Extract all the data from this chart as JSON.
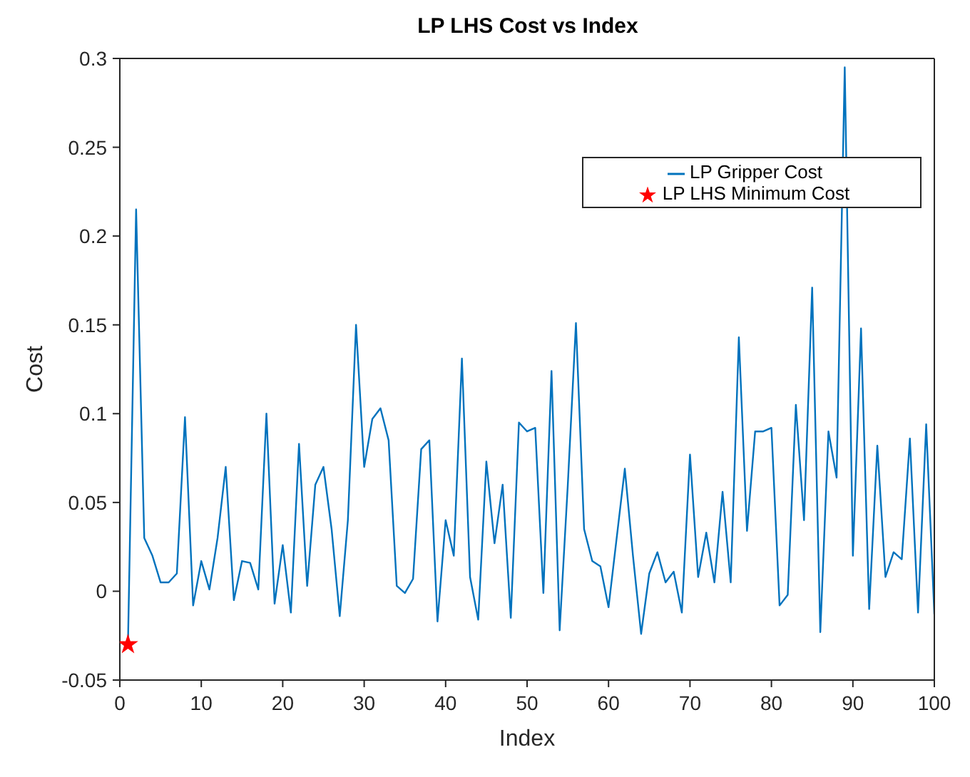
{
  "chart_data": {
    "type": "line",
    "title": "LP LHS Cost vs Index",
    "xlabel": "Index",
    "ylabel": "Cost",
    "xlim": [
      0,
      100
    ],
    "xticks": [
      0,
      10,
      20,
      30,
      40,
      50,
      60,
      70,
      80,
      90,
      100
    ],
    "ylim": [
      -0.05,
      0.3
    ],
    "yticks": [
      -0.05,
      0,
      0.05,
      0.1,
      0.15,
      0.2,
      0.25,
      0.3
    ],
    "legend": "top right",
    "x": [
      1,
      2,
      3,
      4,
      5,
      6,
      7,
      8,
      9,
      10,
      11,
      12,
      13,
      14,
      15,
      16,
      17,
      18,
      19,
      20,
      21,
      22,
      23,
      24,
      25,
      26,
      27,
      28,
      29,
      30,
      31,
      32,
      33,
      34,
      35,
      36,
      37,
      38,
      39,
      40,
      41,
      42,
      43,
      44,
      45,
      46,
      47,
      48,
      49,
      50,
      51,
      52,
      53,
      54,
      55,
      56,
      57,
      58,
      59,
      60,
      61,
      62,
      63,
      64,
      65,
      66,
      67,
      68,
      69,
      70,
      71,
      72,
      73,
      74,
      75,
      76,
      77,
      78,
      79,
      80,
      81,
      82,
      83,
      84,
      85,
      86,
      87,
      88,
      89,
      90,
      91,
      92,
      93,
      94,
      95,
      96,
      97,
      98,
      99,
      100
    ],
    "series": [
      {
        "name": "LP Gripper Cost",
        "color": "#0072bd",
        "marker": "none",
        "values": [
          -0.03,
          0.215,
          0.03,
          0.02,
          0.005,
          0.005,
          0.01,
          0.098,
          -0.008,
          0.017,
          0.001,
          0.03,
          0.07,
          -0.005,
          0.017,
          0.016,
          0.001,
          0.1,
          -0.007,
          0.026,
          -0.012,
          0.083,
          0.003,
          0.06,
          0.07,
          0.035,
          -0.014,
          0.04,
          0.15,
          0.07,
          0.097,
          0.103,
          0.085,
          0.003,
          -0.001,
          0.007,
          0.08,
          0.085,
          -0.017,
          0.04,
          0.02,
          0.131,
          0.008,
          -0.016,
          0.073,
          0.027,
          0.06,
          -0.015,
          0.095,
          0.09,
          0.092,
          -0.001,
          0.124,
          -0.022,
          0.06,
          0.151,
          0.035,
          0.017,
          0.014,
          -0.009,
          0.03,
          0.069,
          0.02,
          -0.024,
          0.01,
          0.022,
          0.005,
          0.011,
          -0.012,
          0.077,
          0.008,
          0.033,
          0.005,
          0.056,
          0.005,
          0.143,
          0.034,
          0.09,
          0.09,
          0.092,
          -0.008,
          -0.002,
          0.105,
          0.04,
          0.171,
          -0.023,
          0.09,
          0.064,
          0.295,
          0.02,
          0.148,
          -0.01,
          0.082,
          0.008,
          0.022,
          0.018,
          0.086,
          -0.012,
          0.094,
          -0.013
        ]
      },
      {
        "name": "LP LHS Minimum Cost",
        "type": "scatter",
        "color": "#ff0000",
        "marker": "star",
        "x": [
          1
        ],
        "values": [
          -0.03
        ]
      }
    ]
  }
}
